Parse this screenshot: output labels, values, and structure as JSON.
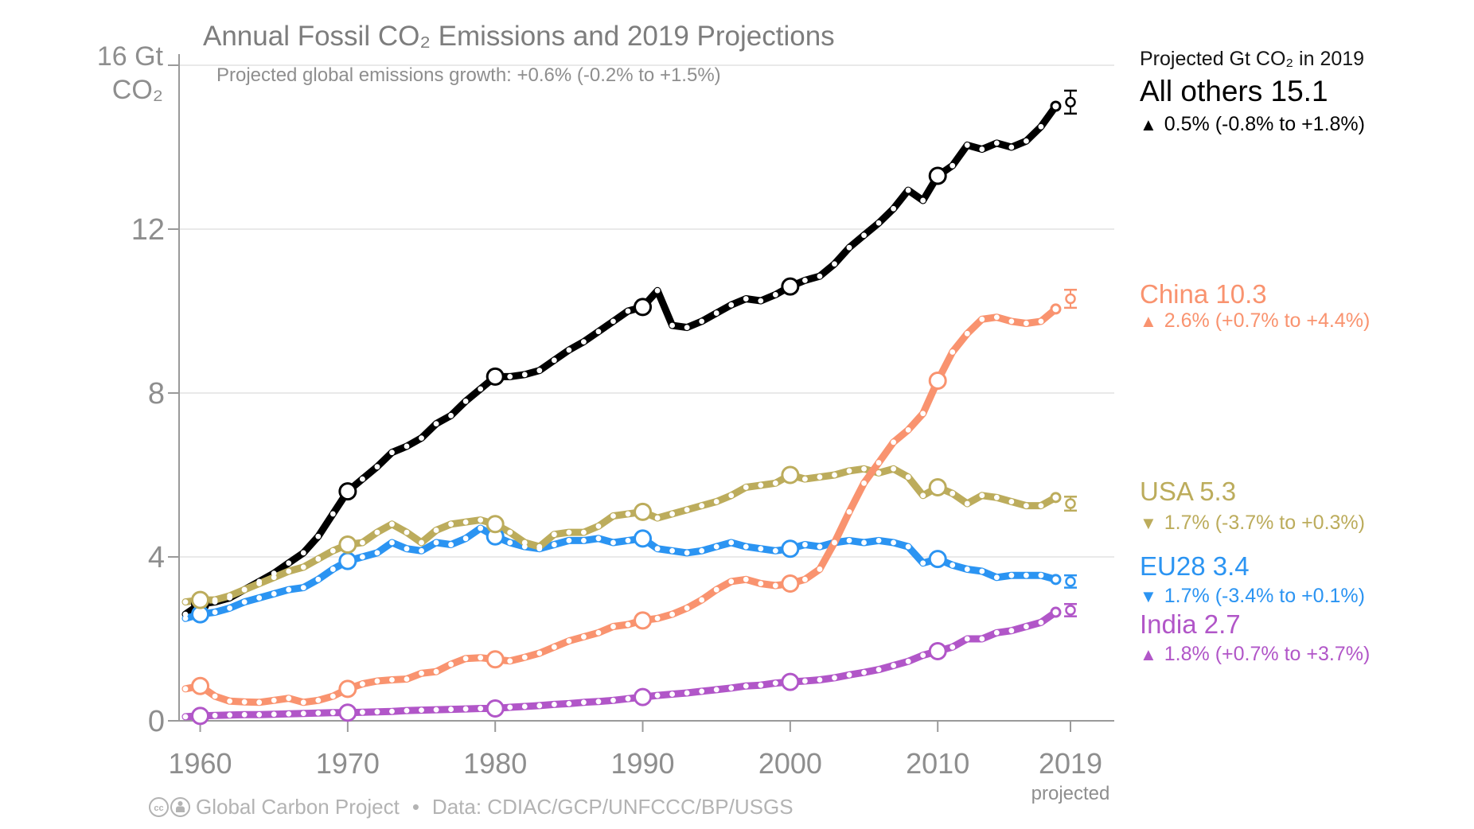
{
  "title": "Annual Fossil CO₂ Emissions and 2019 Projections",
  "subtitle": "Projected global emissions growth: +0.6% (-0.2% to +1.5%)",
  "y_axis": {
    "unit_line1": "16 Gt",
    "unit_line2": "CO₂"
  },
  "x_axis": {
    "projected_label": "projected"
  },
  "legend": {
    "header": "Projected Gt CO₂ in 2019",
    "entries": [
      {
        "label": "All others 15.1",
        "marker": "▲",
        "growth": "0.5% (-0.8% to +1.8%)",
        "color": "#000000"
      },
      {
        "label": "China 10.3",
        "marker": "▲",
        "growth": "2.6% (+0.7% to +4.4%)",
        "color": "#F9936F"
      },
      {
        "label": "USA 5.3",
        "marker": "▼",
        "growth": "1.7% (-3.7% to +0.3%)",
        "color": "#BCAC5C"
      },
      {
        "label": "EU28 3.4",
        "marker": "▼",
        "growth": "1.7% (-3.4% to +0.1%)",
        "color": "#2B94F2"
      },
      {
        "label": "India 2.7",
        "marker": "▲",
        "growth": "1.8% (+0.7% to +3.7%)",
        "color": "#B156C8"
      }
    ]
  },
  "footer": {
    "credit": "Global Carbon Project",
    "bullet": "•",
    "source": "Data: CDIAC/GCP/UNFCCC/BP/USGS",
    "license_icons": [
      "cc-icon",
      "attribution-icon"
    ]
  },
  "chart_data": {
    "type": "line",
    "title": "Annual Fossil CO₂ Emissions and 2019 Projections",
    "ylabel": "Gt CO₂",
    "xlabel": "",
    "ylim": [
      0,
      16
    ],
    "xlim": [
      1959,
      2019
    ],
    "grid": "horizontal",
    "legend_position": "right",
    "years_start": 1959,
    "years_end": 2018,
    "projection_year": 2019,
    "decade_marker_years": [
      1960,
      1970,
      1980,
      1990,
      2000,
      2010
    ],
    "yticks": [
      {
        "label": "12",
        "value": 12
      },
      {
        "label": "8",
        "value": 8
      },
      {
        "label": "4",
        "value": 4
      },
      {
        "label": "0",
        "value": 0
      }
    ],
    "ytick_top_value": 16,
    "gridline_values": [
      4,
      8,
      12,
      16
    ],
    "xticks": [
      {
        "label": "1960",
        "year": 1960
      },
      {
        "label": "1970",
        "year": 1970
      },
      {
        "label": "1980",
        "year": 1980
      },
      {
        "label": "1990",
        "year": 1990
      },
      {
        "label": "2000",
        "year": 2000
      },
      {
        "label": "2010",
        "year": 2010
      },
      {
        "label": "2019",
        "year": 2019
      }
    ],
    "series": [
      {
        "id": "all-others",
        "name": "All others",
        "color": "#000000",
        "values": [
          2.6,
          2.85,
          2.9,
          3.0,
          3.2,
          3.4,
          3.6,
          3.85,
          4.1,
          4.5,
          5.05,
          5.6,
          5.9,
          6.2,
          6.55,
          6.7,
          6.9,
          7.25,
          7.45,
          7.8,
          8.1,
          8.4,
          8.4,
          8.45,
          8.55,
          8.8,
          9.05,
          9.25,
          9.5,
          9.75,
          10.0,
          10.1,
          10.5,
          9.65,
          9.6,
          9.75,
          9.95,
          10.15,
          10.3,
          10.25,
          10.4,
          10.6,
          10.75,
          10.85,
          11.15,
          11.55,
          11.85,
          12.15,
          12.5,
          12.95,
          12.7,
          13.3,
          13.55,
          14.05,
          13.95,
          14.1,
          14.0,
          14.15,
          14.5,
          15.0
        ],
        "projection": {
          "value": 15.1,
          "whisker": 0.28
        }
      },
      {
        "id": "eu28",
        "name": "EU28",
        "color": "#2B94F2",
        "values": [
          2.5,
          2.6,
          2.65,
          2.75,
          2.9,
          3.0,
          3.1,
          3.2,
          3.25,
          3.45,
          3.7,
          3.9,
          4.0,
          4.1,
          4.35,
          4.2,
          4.15,
          4.35,
          4.3,
          4.45,
          4.7,
          4.5,
          4.35,
          4.25,
          4.2,
          4.3,
          4.4,
          4.4,
          4.45,
          4.35,
          4.4,
          4.45,
          4.2,
          4.15,
          4.1,
          4.15,
          4.25,
          4.35,
          4.25,
          4.2,
          4.15,
          4.2,
          4.3,
          4.25,
          4.35,
          4.4,
          4.35,
          4.4,
          4.35,
          4.25,
          3.85,
          3.95,
          3.8,
          3.7,
          3.65,
          3.5,
          3.55,
          3.55,
          3.55,
          3.45
        ],
        "projection": {
          "value": 3.4,
          "whisker": 0.15
        }
      },
      {
        "id": "usa",
        "name": "USA",
        "color": "#BCAC5C",
        "values": [
          2.9,
          2.95,
          2.95,
          3.05,
          3.2,
          3.35,
          3.5,
          3.65,
          3.75,
          3.95,
          4.15,
          4.3,
          4.35,
          4.6,
          4.8,
          4.6,
          4.35,
          4.65,
          4.8,
          4.85,
          4.9,
          4.8,
          4.6,
          4.35,
          4.25,
          4.55,
          4.6,
          4.6,
          4.75,
          5.0,
          5.05,
          5.1,
          4.95,
          5.05,
          5.15,
          5.25,
          5.35,
          5.5,
          5.7,
          5.75,
          5.8,
          6.0,
          5.9,
          5.95,
          6.0,
          6.1,
          6.15,
          6.05,
          6.15,
          5.95,
          5.5,
          5.7,
          5.55,
          5.3,
          5.5,
          5.45,
          5.35,
          5.25,
          5.25,
          5.45
        ],
        "projection": {
          "value": 5.3,
          "whisker": 0.17
        }
      },
      {
        "id": "china",
        "name": "China",
        "color": "#F9936F",
        "values": [
          0.78,
          0.85,
          0.6,
          0.48,
          0.46,
          0.45,
          0.5,
          0.55,
          0.45,
          0.5,
          0.6,
          0.78,
          0.9,
          0.97,
          1.0,
          1.02,
          1.16,
          1.2,
          1.38,
          1.52,
          1.54,
          1.5,
          1.46,
          1.55,
          1.65,
          1.8,
          1.95,
          2.05,
          2.15,
          2.3,
          2.35,
          2.45,
          2.5,
          2.6,
          2.75,
          2.95,
          3.2,
          3.4,
          3.45,
          3.35,
          3.3,
          3.35,
          3.45,
          3.7,
          4.35,
          5.1,
          5.8,
          6.3,
          6.8,
          7.1,
          7.5,
          8.3,
          9.0,
          9.45,
          9.8,
          9.85,
          9.75,
          9.7,
          9.75,
          10.05
        ],
        "projection": {
          "value": 10.3,
          "whisker": 0.22
        }
      },
      {
        "id": "india",
        "name": "India",
        "color": "#B156C8",
        "values": [
          0.1,
          0.12,
          0.13,
          0.14,
          0.15,
          0.15,
          0.16,
          0.17,
          0.18,
          0.19,
          0.2,
          0.2,
          0.21,
          0.22,
          0.23,
          0.25,
          0.26,
          0.27,
          0.28,
          0.29,
          0.3,
          0.3,
          0.33,
          0.35,
          0.37,
          0.4,
          0.42,
          0.45,
          0.47,
          0.5,
          0.54,
          0.58,
          0.62,
          0.65,
          0.68,
          0.72,
          0.76,
          0.8,
          0.85,
          0.87,
          0.92,
          0.95,
          0.97,
          1.0,
          1.05,
          1.12,
          1.18,
          1.25,
          1.35,
          1.45,
          1.6,
          1.7,
          1.8,
          2.0,
          2.0,
          2.15,
          2.2,
          2.3,
          2.4,
          2.65
        ],
        "projection": {
          "value": 2.7,
          "whisker": 0.15
        }
      }
    ]
  }
}
